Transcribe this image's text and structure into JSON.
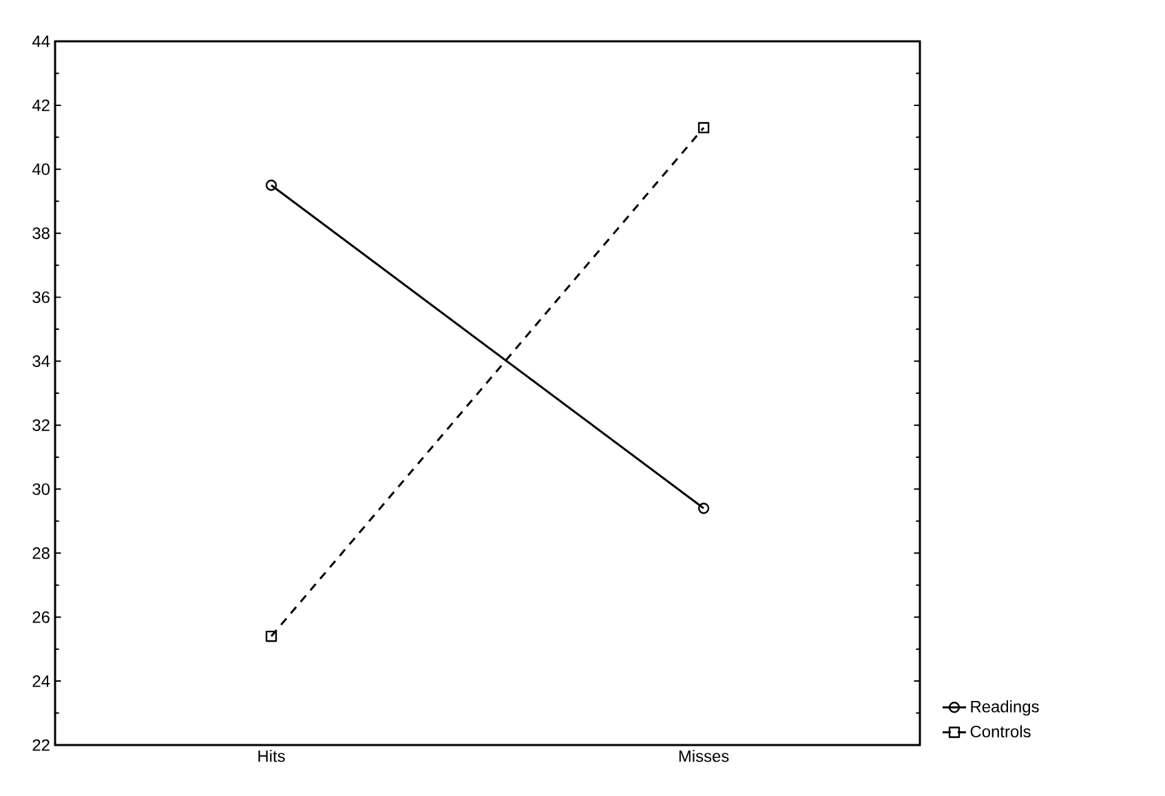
{
  "chart_data": {
    "type": "line",
    "categories": [
      "Hits",
      "Misses"
    ],
    "series": [
      {
        "name": "Readings",
        "color": "#000000",
        "values": [
          39.5,
          29.4
        ],
        "marker": "circle",
        "line_style": "solid"
      },
      {
        "name": "Controls",
        "color": "#000000",
        "values": [
          25.4,
          41.3
        ],
        "marker": "square",
        "line_style": "dashed"
      }
    ],
    "ylim": [
      22,
      44
    ],
    "yticks": [
      22,
      24,
      26,
      28,
      30,
      32,
      34,
      36,
      38,
      40,
      42,
      44
    ],
    "grid": false,
    "legend": "bottom right"
  }
}
